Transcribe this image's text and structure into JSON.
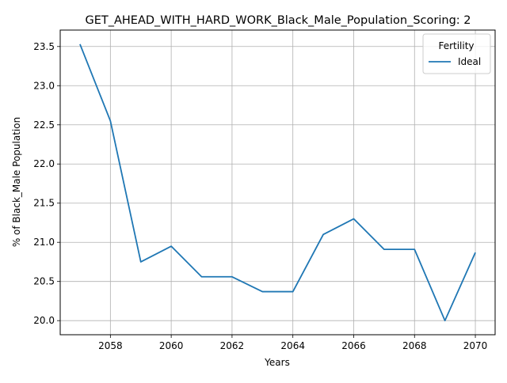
{
  "chart_data": {
    "type": "line",
    "title": "GET_AHEAD_WITH_HARD_WORK_Black_Male_Population_Scoring: 2",
    "xlabel": "Years",
    "ylabel": "% of Black_Male Population",
    "xlim": [
      2056.35,
      2070.65
    ],
    "ylim": [
      19.82,
      23.71
    ],
    "x_ticks": [
      2058,
      2060,
      2062,
      2064,
      2066,
      2068,
      2070
    ],
    "y_ticks": [
      20.0,
      20.5,
      21.0,
      21.5,
      22.0,
      22.5,
      23.0,
      23.5
    ],
    "grid": true,
    "legend": {
      "title": "Fertility",
      "placement": "top-right"
    },
    "series": [
      {
        "name": "Ideal",
        "color": "#1f77b4",
        "x": [
          2057,
          2058,
          2059,
          2060,
          2061,
          2062,
          2063,
          2064,
          2065,
          2066,
          2067,
          2068,
          2069,
          2070
        ],
        "values": [
          23.53,
          22.55,
          20.75,
          20.95,
          20.56,
          20.56,
          20.37,
          20.37,
          21.1,
          21.3,
          20.91,
          20.91,
          20.0,
          20.87
        ]
      }
    ]
  }
}
